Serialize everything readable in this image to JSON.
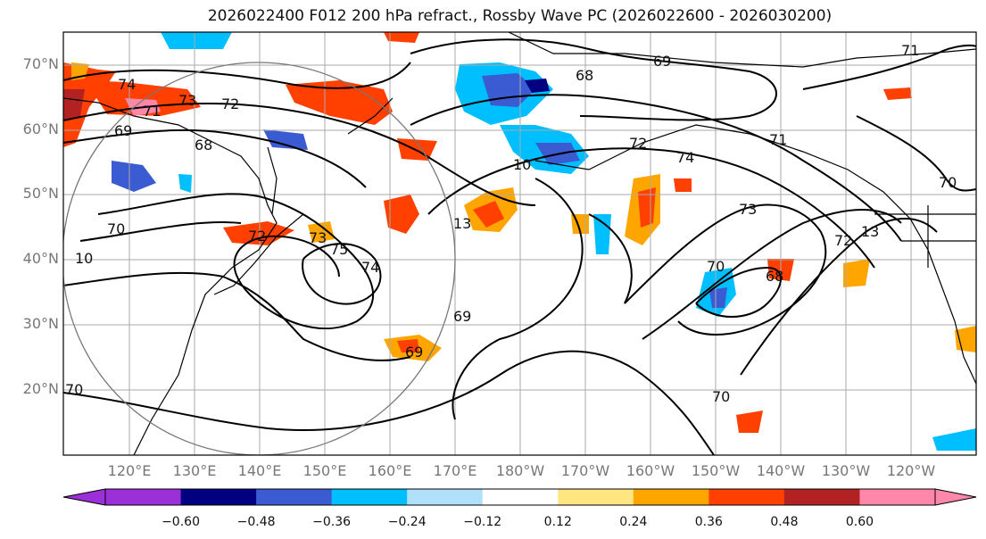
{
  "title": "2026022400 F012 200 hPa refract., Rossby Wave PC (2026022600 - 2026030200)",
  "lat_ticks": [
    "70°N",
    "60°N",
    "50°N",
    "40°N",
    "30°N",
    "20°N"
  ],
  "lon_ticks": [
    "120°E",
    "130°E",
    "140°E",
    "150°E",
    "160°E",
    "170°E",
    "180°W",
    "170°W",
    "160°W",
    "150°W",
    "140°W",
    "130°W",
    "120°W"
  ],
  "colorbar": {
    "colors": [
      "#9b30d9",
      "#000080",
      "#3a5bd1",
      "#00bfff",
      "#b0e0fa",
      "#ffffff",
      "#ffe680",
      "#ffa500",
      "#ff4000",
      "#b22222",
      "#ff88aa"
    ],
    "labels": [
      "−0.60",
      "−0.48",
      "−0.36",
      "−0.24",
      "−0.12",
      "0.12",
      "0.24",
      "0.36",
      "0.48",
      "0.60"
    ]
  },
  "contour_labels": [
    "74",
    "73",
    "72",
    "71",
    "69",
    "68",
    "68",
    "69",
    "71",
    "72",
    "74",
    "71",
    "70",
    "70",
    "73",
    "13",
    "72",
    "13",
    "70",
    "68",
    "73",
    "75",
    "74",
    "10",
    "69",
    "69",
    "70",
    "72",
    "70",
    "10"
  ]
}
